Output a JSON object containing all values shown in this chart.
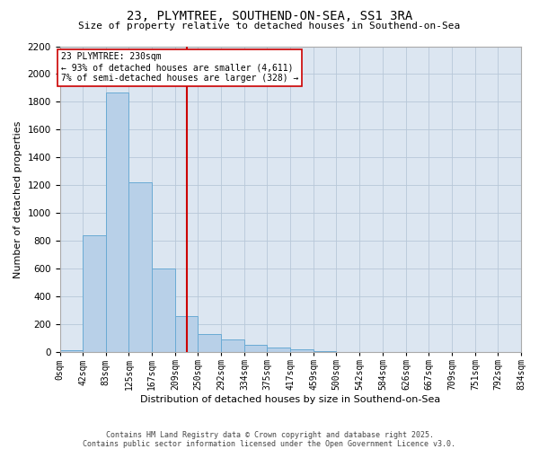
{
  "title": "23, PLYMTREE, SOUTHEND-ON-SEA, SS1 3RA",
  "subtitle": "Size of property relative to detached houses in Southend-on-Sea",
  "xlabel": "Distribution of detached houses by size in Southend-on-Sea",
  "ylabel": "Number of detached properties",
  "footer_line1": "Contains HM Land Registry data © Crown copyright and database right 2025.",
  "footer_line2": "Contains public sector information licensed under the Open Government Licence v3.0.",
  "annotation_title": "23 PLYMTREE: 230sqm",
  "annotation_line2": "← 93% of detached houses are smaller (4,611)",
  "annotation_line3": "7% of semi-detached houses are larger (328) →",
  "marker_value": 230,
  "bar_color": "#b8d0e8",
  "bar_edge_color": "#6aaad4",
  "marker_color": "#cc0000",
  "background_color": "#dce6f1",
  "ylim": [
    0,
    2200
  ],
  "yticks": [
    0,
    200,
    400,
    600,
    800,
    1000,
    1200,
    1400,
    1600,
    1800,
    2000,
    2200
  ],
  "bin_edges": [
    0,
    42,
    83,
    125,
    167,
    209,
    250,
    292,
    334,
    375,
    417,
    459,
    500,
    542,
    584,
    626,
    667,
    709,
    751,
    792,
    834
  ],
  "bin_labels": [
    "0sqm",
    "42sqm",
    "83sqm",
    "125sqm",
    "167sqm",
    "209sqm",
    "250sqm",
    "292sqm",
    "334sqm",
    "375sqm",
    "417sqm",
    "459sqm",
    "500sqm",
    "542sqm",
    "584sqm",
    "626sqm",
    "667sqm",
    "709sqm",
    "751sqm",
    "792sqm",
    "834sqm"
  ],
  "bar_heights": [
    15,
    840,
    1870,
    1220,
    600,
    260,
    130,
    90,
    55,
    35,
    20,
    8,
    3,
    2,
    1,
    0,
    0,
    0,
    0,
    0
  ]
}
